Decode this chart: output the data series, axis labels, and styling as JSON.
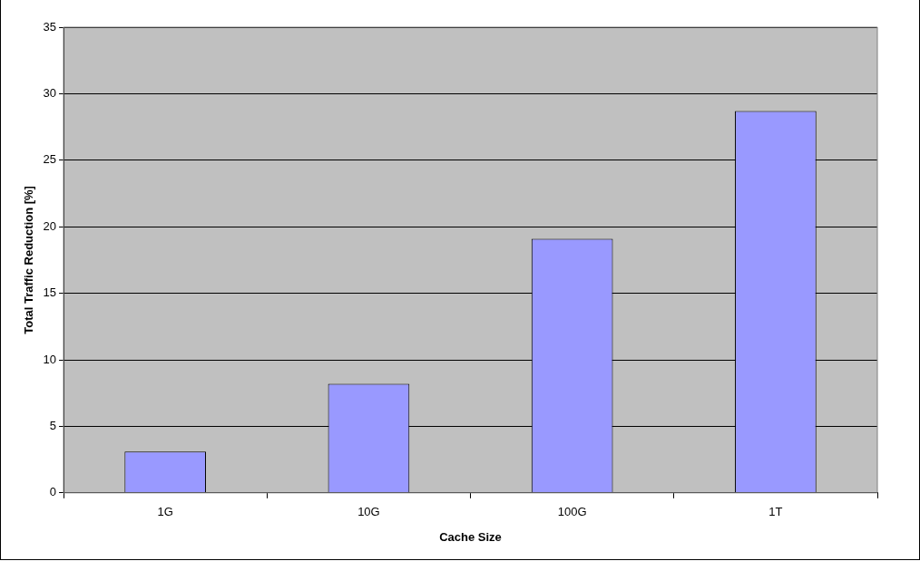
{
  "chart_data": {
    "type": "bar",
    "xlabel": "Cache Size",
    "ylabel": "Total Traffic Reduction [%]",
    "categories": [
      "1G",
      "10G",
      "100G",
      "1T"
    ],
    "values": [
      3.1,
      8.2,
      19.1,
      28.7
    ],
    "color": "#9999ff",
    "ylim": [
      0,
      35
    ],
    "yticks": [
      0,
      5,
      10,
      15,
      20,
      25,
      30,
      35
    ],
    "grid": "y",
    "legend": false
  }
}
